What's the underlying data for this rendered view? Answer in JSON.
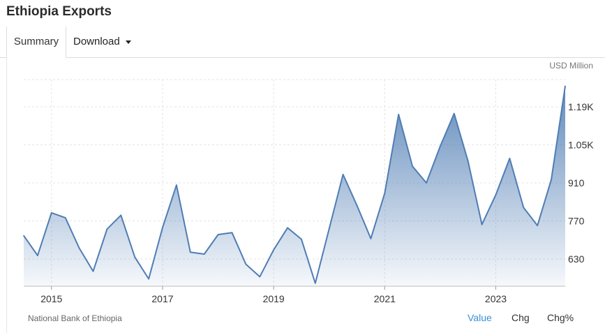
{
  "header": {
    "title": "Ethiopia Exports"
  },
  "tabs": {
    "summary": "Summary",
    "download": "Download"
  },
  "unit": "USD Million",
  "source": "National Bank of Ethiopia",
  "modes": {
    "value": "Value",
    "chg": "Chg",
    "chg_pct": "Chg%"
  },
  "colors": {
    "line": "#4f7db4",
    "fill_top": "#4f7db4",
    "active_mode": "#3a8fd3"
  },
  "chart_data": {
    "type": "area",
    "title": "Ethiopia Exports",
    "ylabel": "USD Million",
    "ylim": [
      530,
      1290
    ],
    "xlim": [
      2014.5,
      2024.25
    ],
    "y_ticks": [
      630,
      770,
      910,
      1050,
      1190
    ],
    "y_tick_labels": [
      "630",
      "770",
      "910",
      "1.05K",
      "1.19K"
    ],
    "x_ticks": [
      2015,
      2017,
      2019,
      2021,
      2023
    ],
    "x_tick_labels": [
      "2015",
      "2017",
      "2019",
      "2021",
      "2023"
    ],
    "grid": true,
    "series": [
      {
        "x": [
          2014.5,
          2014.75,
          2015.0,
          2015.25,
          2015.5,
          2015.75,
          2016.0,
          2016.25,
          2016.5,
          2016.75,
          2017.0,
          2017.25,
          2017.5,
          2017.75,
          2018.0,
          2018.25,
          2018.5,
          2018.75,
          2019.0,
          2019.25,
          2019.5,
          2019.75,
          2020.0,
          2020.25,
          2020.5,
          2020.75,
          2021.0,
          2021.25,
          2021.5,
          2021.75,
          2022.0,
          2022.25,
          2022.5,
          2022.75,
          2023.0,
          2023.25,
          2023.5,
          2023.75,
          2024.0,
          2024.25
        ],
        "values": [
          716,
          643,
          800,
          782,
          670,
          585,
          740,
          791,
          637,
          557,
          746,
          902,
          655,
          648,
          720,
          727,
          611,
          565,
          664,
          745,
          703,
          541,
          741,
          941,
          827,
          705,
          872,
          1162,
          971,
          910,
          1045,
          1165,
          990,
          757,
          866,
          1000,
          819,
          753,
          923,
          1266
        ]
      }
    ]
  }
}
